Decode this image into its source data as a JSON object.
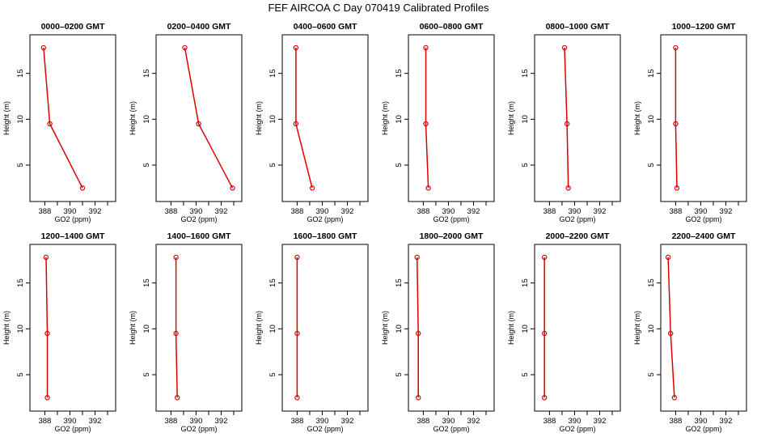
{
  "figure": {
    "title": "FEF AIRCOA C  Day 070419  Calibrated Profiles"
  },
  "colors": {
    "series": "#dd0000",
    "axes": "#000000",
    "background": "#ffffff"
  },
  "chart_data": [
    {
      "type": "line",
      "title": "0000–0200 GMT",
      "xlabel": "GO2 (ppm)",
      "ylabel": "Height (m)",
      "xlim": [
        387.2,
        393.0
      ],
      "ylim": [
        2.0,
        18.5
      ],
      "xticks": [
        388,
        390,
        392
      ],
      "yticks": [
        5,
        10,
        15
      ],
      "x": [
        387.9,
        388.4,
        391.0
      ],
      "y": [
        17.8,
        9.5,
        2.5
      ]
    },
    {
      "type": "line",
      "title": "0200–0400 GMT",
      "xlabel": "GO2 (ppm)",
      "ylabel": "Height (m)",
      "xlim": [
        387.2,
        393.0
      ],
      "ylim": [
        2.0,
        18.5
      ],
      "xticks": [
        388,
        390,
        392
      ],
      "yticks": [
        5,
        10,
        15
      ],
      "x": [
        389.1,
        390.2,
        392.9
      ],
      "y": [
        17.8,
        9.5,
        2.5
      ]
    },
    {
      "type": "line",
      "title": "0400–0600 GMT",
      "xlabel": "GO2 (ppm)",
      "ylabel": "Height (m)",
      "xlim": [
        387.2,
        393.0
      ],
      "ylim": [
        2.0,
        18.5
      ],
      "xticks": [
        388,
        390,
        392
      ],
      "yticks": [
        5,
        10,
        15
      ],
      "x": [
        387.9,
        387.9,
        389.2
      ],
      "y": [
        17.8,
        9.5,
        2.5
      ]
    },
    {
      "type": "line",
      "title": "0600–0800 GMT",
      "xlabel": "GO2 (ppm)",
      "ylabel": "Height (m)",
      "xlim": [
        387.2,
        393.0
      ],
      "ylim": [
        2.0,
        18.5
      ],
      "xticks": [
        388,
        390,
        392
      ],
      "yticks": [
        5,
        10,
        15
      ],
      "x": [
        388.2,
        388.2,
        388.4
      ],
      "y": [
        17.8,
        9.5,
        2.5
      ]
    },
    {
      "type": "line",
      "title": "0800–1000 GMT",
      "xlabel": "GO2 (ppm)",
      "ylabel": "Height (m)",
      "xlim": [
        387.2,
        393.0
      ],
      "ylim": [
        2.0,
        18.5
      ],
      "xticks": [
        388,
        390,
        392
      ],
      "yticks": [
        5,
        10,
        15
      ],
      "x": [
        389.2,
        389.4,
        389.5
      ],
      "y": [
        17.8,
        9.5,
        2.5
      ]
    },
    {
      "type": "line",
      "title": "1000–1200 GMT",
      "xlabel": "GO2 (ppm)",
      "ylabel": "Height (m)",
      "xlim": [
        387.2,
        393.0
      ],
      "ylim": [
        2.0,
        18.5
      ],
      "xticks": [
        388,
        390,
        392
      ],
      "yticks": [
        5,
        10,
        15
      ],
      "x": [
        388.0,
        388.0,
        388.1
      ],
      "y": [
        17.8,
        9.5,
        2.5
      ]
    },
    {
      "type": "line",
      "title": "1200–1400 GMT",
      "xlabel": "GO2 (ppm)",
      "ylabel": "Height (m)",
      "xlim": [
        387.2,
        393.0
      ],
      "ylim": [
        2.0,
        18.5
      ],
      "xticks": [
        388,
        390,
        392
      ],
      "yticks": [
        5,
        10,
        15
      ],
      "x": [
        388.1,
        388.2,
        388.2
      ],
      "y": [
        17.8,
        9.5,
        2.5
      ]
    },
    {
      "type": "line",
      "title": "1400–1600 GMT",
      "xlabel": "GO2 (ppm)",
      "ylabel": "Height (m)",
      "xlim": [
        387.2,
        393.0
      ],
      "ylim": [
        2.0,
        18.5
      ],
      "xticks": [
        388,
        390,
        392
      ],
      "yticks": [
        5,
        10,
        15
      ],
      "x": [
        388.4,
        388.4,
        388.5
      ],
      "y": [
        17.8,
        9.5,
        2.5
      ]
    },
    {
      "type": "line",
      "title": "1600–1800 GMT",
      "xlabel": "GO2 (ppm)",
      "ylabel": "Height (m)",
      "xlim": [
        387.2,
        393.0
      ],
      "ylim": [
        2.0,
        18.5
      ],
      "xticks": [
        388,
        390,
        392
      ],
      "yticks": [
        5,
        10,
        15
      ],
      "x": [
        388.0,
        388.0,
        388.0
      ],
      "y": [
        17.8,
        9.5,
        2.5
      ]
    },
    {
      "type": "line",
      "title": "1800–2000 GMT",
      "xlabel": "GO2 (ppm)",
      "ylabel": "Height (m)",
      "xlim": [
        387.2,
        393.0
      ],
      "ylim": [
        2.0,
        18.5
      ],
      "xticks": [
        388,
        390,
        392
      ],
      "yticks": [
        5,
        10,
        15
      ],
      "x": [
        387.5,
        387.6,
        387.6
      ],
      "y": [
        17.8,
        9.5,
        2.5
      ]
    },
    {
      "type": "line",
      "title": "2000–2200 GMT",
      "xlabel": "GO2 (ppm)",
      "ylabel": "Height (m)",
      "xlim": [
        387.2,
        393.0
      ],
      "ylim": [
        2.0,
        18.5
      ],
      "xticks": [
        388,
        390,
        392
      ],
      "yticks": [
        5,
        10,
        15
      ],
      "x": [
        387.6,
        387.6,
        387.6
      ],
      "y": [
        17.8,
        9.5,
        2.5
      ]
    },
    {
      "type": "line",
      "title": "2200–2400 GMT",
      "xlabel": "GO2 (ppm)",
      "ylabel": "Height (m)",
      "xlim": [
        387.2,
        393.0
      ],
      "ylim": [
        2.0,
        18.5
      ],
      "xticks": [
        388,
        390,
        392
      ],
      "yticks": [
        5,
        10,
        15
      ],
      "x": [
        387.4,
        387.6,
        387.9
      ],
      "y": [
        17.8,
        9.5,
        2.5
      ]
    }
  ]
}
